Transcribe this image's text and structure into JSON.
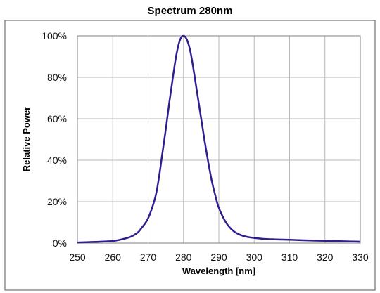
{
  "chart_data": {
    "type": "line",
    "title": "Spectrum 280nm",
    "xlabel": "Wavelength [nm]",
    "ylabel": "Relative Power",
    "xlim": [
      250,
      330
    ],
    "ylim": [
      0,
      100
    ],
    "x_ticks": [
      "250",
      "260",
      "270",
      "280",
      "290",
      "300",
      "310",
      "320",
      "330"
    ],
    "y_ticks": [
      "0%",
      "20%",
      "40%",
      "60%",
      "80%",
      "100%"
    ],
    "grid": true,
    "legend": "none",
    "series": [
      {
        "color": "#2e1f8f",
        "x": [
          250,
          255,
          260,
          263,
          265,
          267,
          268,
          270,
          272,
          273,
          274,
          275,
          276,
          277,
          278,
          279,
          280,
          281,
          282,
          283,
          284,
          285,
          286,
          287,
          288,
          289,
          290,
          292,
          294,
          296,
          298,
          300,
          303,
          306,
          310,
          315,
          320,
          325,
          330
        ],
        "y": [
          0.3,
          0.6,
          1,
          2,
          3,
          5,
          7,
          12,
          22,
          31,
          43,
          55,
          68,
          80,
          91,
          98,
          100,
          98,
          92,
          82,
          71,
          60,
          49,
          39,
          30,
          23,
          17,
          10,
          6,
          4,
          3,
          2.5,
          2,
          1.8,
          1.6,
          1.3,
          1.1,
          0.9,
          0.7
        ]
      }
    ]
  }
}
